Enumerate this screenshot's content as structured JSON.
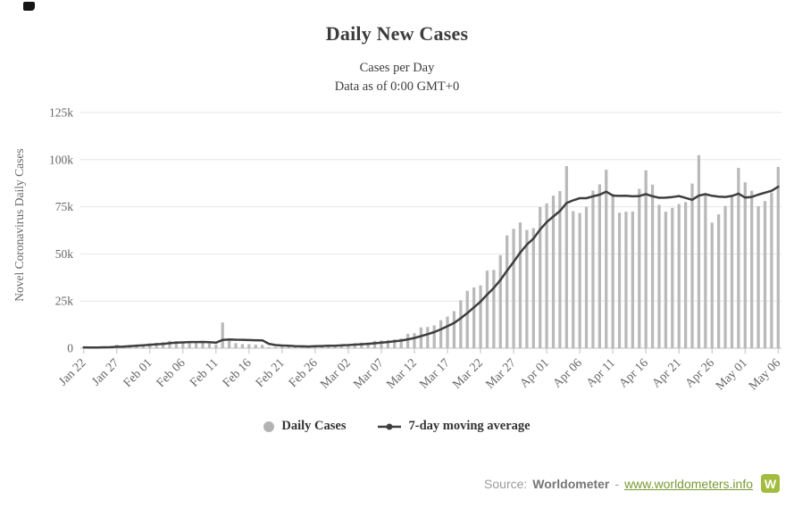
{
  "title": "Daily New Cases",
  "subtitle_line1": "Cases per Day",
  "subtitle_line2": "Data as of 0:00 GMT+0",
  "y_axis_label": "Novel Coronavirus Daily Cases",
  "legend": {
    "daily_cases": "Daily Cases",
    "moving_average": "7-day moving average"
  },
  "footer": {
    "source_label": "Source:",
    "source_name": "Worldometer",
    "separator": "-",
    "link_text": "www.worldometers.info",
    "logo_letter": "W"
  },
  "colors": {
    "bar": "#b9b9b9",
    "line": "#3e3e3e",
    "grid": "#e6e6e6",
    "axis_line": "#c0c0c0",
    "axis_text": "#666666",
    "title_text": "#3c3c3c",
    "link": "#7a9a35",
    "logo_bg": "#a2bc3e"
  },
  "chart_data": {
    "type": "bar",
    "title": "Daily New Cases",
    "subtitle": [
      "Cases per Day",
      "Data as of 0:00 GMT+0"
    ],
    "ylabel": "Novel Coronavirus Daily Cases",
    "xlabel": "",
    "ylim": [
      0,
      125000
    ],
    "y_ticks": [
      "0",
      "25k",
      "50k",
      "75k",
      "100k",
      "125k"
    ],
    "x_tick_every": 5,
    "x_tick_labels": [
      "Jan 22",
      "Jan 27",
      "Feb 01",
      "Feb 06",
      "Feb 11",
      "Feb 16",
      "Feb 21",
      "Feb 26",
      "Mar 02",
      "Mar 07",
      "Mar 12",
      "Mar 17",
      "Mar 22",
      "Mar 27",
      "Apr 01",
      "Apr 06",
      "Apr 11",
      "Apr 16",
      "Apr 21",
      "Apr 26",
      "May 01",
      "May 06"
    ],
    "legend_position": "bottom",
    "grid": "horizontal",
    "categories": [
      "Jan 22",
      "Jan 23",
      "Jan 24",
      "Jan 25",
      "Jan 26",
      "Jan 27",
      "Jan 28",
      "Jan 29",
      "Jan 30",
      "Jan 31",
      "Feb 01",
      "Feb 02",
      "Feb 03",
      "Feb 04",
      "Feb 05",
      "Feb 06",
      "Feb 07",
      "Feb 08",
      "Feb 09",
      "Feb 10",
      "Feb 11",
      "Feb 12",
      "Feb 13",
      "Feb 14",
      "Feb 15",
      "Feb 16",
      "Feb 17",
      "Feb 18",
      "Feb 19",
      "Feb 20",
      "Feb 21",
      "Feb 22",
      "Feb 23",
      "Feb 24",
      "Feb 25",
      "Feb 26",
      "Feb 27",
      "Feb 28",
      "Feb 29",
      "Mar 01",
      "Mar 02",
      "Mar 03",
      "Mar 04",
      "Mar 05",
      "Mar 06",
      "Mar 07",
      "Mar 08",
      "Mar 09",
      "Mar 10",
      "Mar 11",
      "Mar 12",
      "Mar 13",
      "Mar 14",
      "Mar 15",
      "Mar 16",
      "Mar 17",
      "Mar 18",
      "Mar 19",
      "Mar 20",
      "Mar 21",
      "Mar 22",
      "Mar 23",
      "Mar 24",
      "Mar 25",
      "Mar 26",
      "Mar 27",
      "Mar 28",
      "Mar 29",
      "Mar 30",
      "Mar 31",
      "Apr 01",
      "Apr 02",
      "Apr 03",
      "Apr 04",
      "Apr 05",
      "Apr 06",
      "Apr 07",
      "Apr 08",
      "Apr 09",
      "Apr 10",
      "Apr 11",
      "Apr 12",
      "Apr 13",
      "Apr 14",
      "Apr 15",
      "Apr 16",
      "Apr 17",
      "Apr 18",
      "Apr 19",
      "Apr 20",
      "Apr 21",
      "Apr 22",
      "Apr 23",
      "Apr 24",
      "Apr 25",
      "Apr 26",
      "Apr 27",
      "Apr 28",
      "Apr 29",
      "Apr 30",
      "May 01",
      "May 02",
      "May 03",
      "May 04",
      "May 05",
      "May 06"
    ],
    "series": [
      {
        "name": "Daily Cases",
        "type": "bar",
        "values": [
          441,
          265,
          468,
          703,
          786,
          1781,
          1477,
          1755,
          2005,
          2127,
          2603,
          2836,
          3239,
          3927,
          3723,
          3163,
          3437,
          2676,
          3001,
          2545,
          2022,
          13628,
          5090,
          2641,
          2170,
          2082,
          1893,
          1752,
          531,
          627,
          899,
          1375,
          675,
          1016,
          1141,
          1409,
          1457,
          1888,
          1779,
          1846,
          2079,
          2645,
          2958,
          2979,
          3880,
          4126,
          4349,
          4672,
          5208,
          7602,
          7908,
          11013,
          11253,
          12095,
          14833,
          16736,
          19649,
          25404,
          30423,
          32229,
          33303,
          41126,
          41475,
          49346,
          59836,
          63318,
          66702,
          62726,
          63647,
          74913,
          76776,
          80918,
          83311,
          96554,
          72654,
          71646,
          75014,
          83547,
          86892,
          94625,
          81917,
          71848,
          72389,
          72506,
          84494,
          94349,
          86736,
          76054,
          72390,
          74446,
          76444,
          77472,
          87309,
          102375,
          81215,
          66556,
          71002,
          75437,
          81370,
          95624,
          87970,
          83486,
          75323,
          77996,
          82580,
          96139
        ]
      },
      {
        "name": "7-day moving average",
        "type": "line",
        "derived": "trailing 7-day moving average of Daily Cases"
      }
    ]
  }
}
